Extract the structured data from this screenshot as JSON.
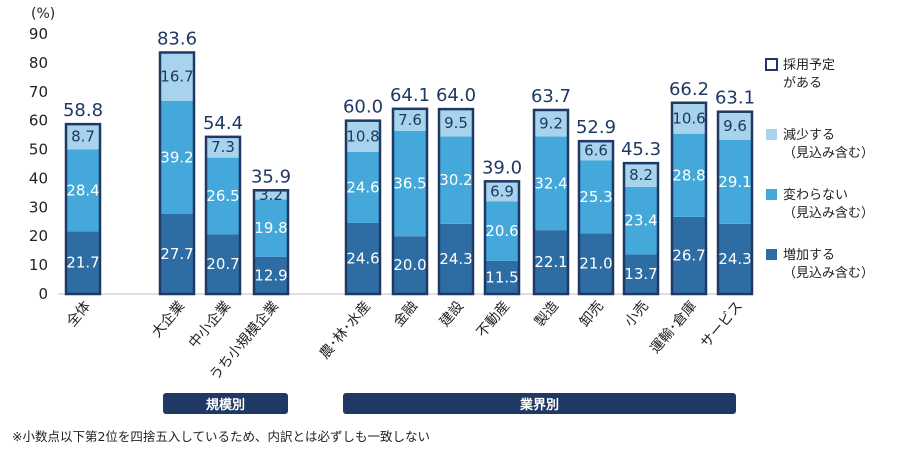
{
  "chart_data": {
    "type": "bar",
    "stacked": true,
    "unit": "(%)",
    "ylim": [
      0,
      90
    ],
    "yticks": [
      0,
      10,
      20,
      30,
      40,
      50,
      60,
      70,
      80,
      90
    ],
    "categories": [
      "全体",
      "大企業",
      "中小企業",
      "うち小規模企業",
      "農･林･水産",
      "金融",
      "建設",
      "不動産",
      "製造",
      "卸売",
      "小売",
      "運輸･倉庫",
      "サービス"
    ],
    "series": [
      {
        "name": "増加する\n（見込み含む）",
        "color": "#2e6da4",
        "values": [
          21.7,
          27.7,
          20.7,
          12.9,
          24.6,
          20.0,
          24.3,
          11.5,
          22.1,
          21.0,
          13.7,
          26.7,
          24.3
        ]
      },
      {
        "name": "変わらない\n（見込み含む）",
        "color": "#44a8da",
        "values": [
          28.4,
          39.2,
          26.5,
          19.8,
          24.6,
          36.5,
          30.2,
          20.6,
          32.4,
          25.3,
          23.4,
          28.8,
          29.1
        ]
      },
      {
        "name": "減少する\n（見込み含む）",
        "color": "#a8d3ec",
        "values": [
          8.7,
          16.7,
          7.3,
          3.2,
          10.8,
          7.6,
          9.5,
          6.9,
          9.2,
          6.6,
          8.2,
          10.6,
          9.6
        ]
      }
    ],
    "totals": {
      "name": "採用予定\nがある",
      "values": [
        58.8,
        83.6,
        54.4,
        35.9,
        60.0,
        64.1,
        64.0,
        39.0,
        63.7,
        52.9,
        45.3,
        66.2,
        63.1
      ],
      "labels": [
        "58.8",
        "83.6",
        "54.4",
        "35.9",
        "60.0",
        "64.1",
        "64.0",
        "39.0",
        "63.7",
        "52.9",
        "45.3",
        "66.2",
        "63.1"
      ]
    },
    "segment_labels": [
      [
        "21.7",
        "28.4",
        "8.7"
      ],
      [
        "27.7",
        "39.2",
        "16.7"
      ],
      [
        "20.7",
        "26.5",
        "7.3"
      ],
      [
        "12.9",
        "19.8",
        "3.2"
      ],
      [
        "24.6",
        "24.6",
        "10.8"
      ],
      [
        "20.0",
        "36.5",
        "7.6"
      ],
      [
        "24.3",
        "30.2",
        "9.5"
      ],
      [
        "11.5",
        "20.6",
        "6.9"
      ],
      [
        "22.1",
        "32.4",
        "9.2"
      ],
      [
        "21.0",
        "25.3",
        "6.6"
      ],
      [
        "13.7",
        "23.4",
        "8.2"
      ],
      [
        "26.7",
        "28.8",
        "10.6"
      ],
      [
        "24.3",
        "29.1",
        "9.6"
      ]
    ],
    "groups": [
      {
        "label": "規模別"
      },
      {
        "label": "業界別"
      }
    ],
    "outline_color": "#1f3864",
    "legend_position": "right"
  },
  "footnote": "※小数点以下第2位を四捨五入しているため、内訳とは必ずしも一致しない"
}
